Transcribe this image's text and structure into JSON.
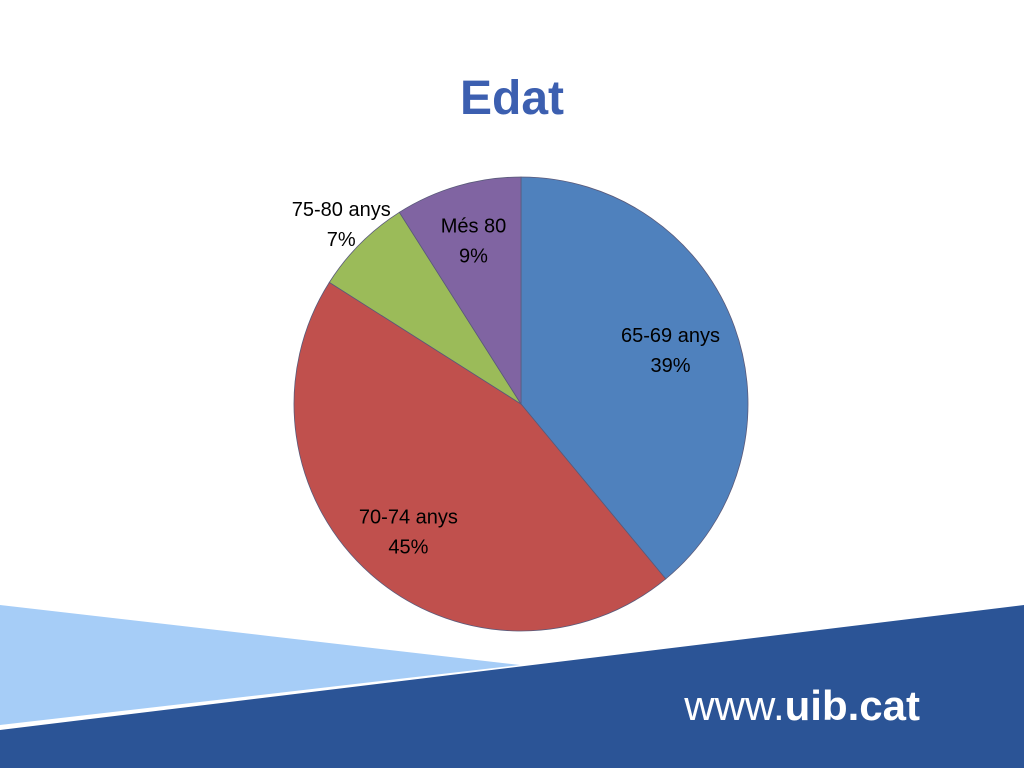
{
  "chart_data": {
    "type": "pie",
    "title": "Edat",
    "categories": [
      "65-69 anys",
      "70-74 anys",
      "75-80 anys",
      "Més 80"
    ],
    "values": [
      39,
      45,
      7,
      9
    ],
    "value_labels": [
      "39%",
      "45%",
      "7%",
      "9%"
    ],
    "colors": [
      "#4f81bd",
      "#c0504d",
      "#9bbb59",
      "#8064a2"
    ]
  },
  "footer": {
    "prefix": "www.",
    "brand": "uib.cat"
  }
}
